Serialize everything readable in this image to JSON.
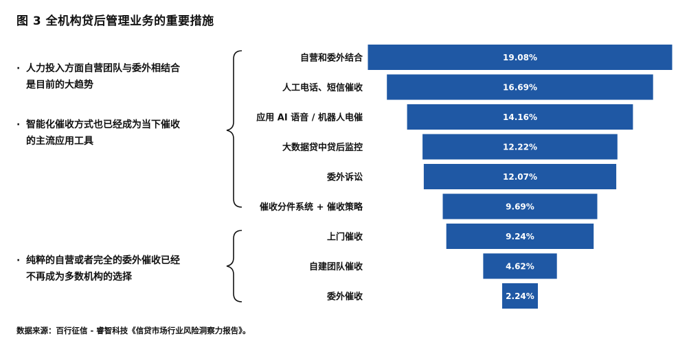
{
  "title": "图 3  全机构贷后管理业务的重要措施",
  "notes": {
    "group1": [
      "人力投入方面自营团队与委外相结合\n是目前的大趋势",
      "智能化催收方式也已经成为当下催收\n的主流应用工具"
    ],
    "group2": [
      "纯粹的自营或者完全的委外催收已经\n不再成为多数机构的选择"
    ]
  },
  "source": "数据来源：百行征信 - 睿智科技《信贷市场行业风险洞察力报告》。",
  "colors": {
    "bar": "#1f58a4",
    "bracket": "#111111"
  },
  "chart_data": {
    "type": "bar",
    "orientation": "horizontal-centered",
    "categories": [
      "自营和委外结合",
      "人工电话、短信催收",
      "应用 AI 语音 / 机器人电催",
      "大数据贷中贷后监控",
      "委外诉讼",
      "催收分件系统 + 催收策略",
      "上门催收",
      "自建团队催收",
      "委外催收"
    ],
    "values": [
      19.08,
      16.69,
      14.16,
      12.22,
      12.07,
      9.69,
      9.24,
      4.62,
      2.24
    ],
    "value_labels": [
      "19.08%",
      "16.69%",
      "14.16%",
      "12.22%",
      "12.07%",
      "9.69%",
      "9.24%",
      "4.62%",
      "2.24%"
    ]
  }
}
